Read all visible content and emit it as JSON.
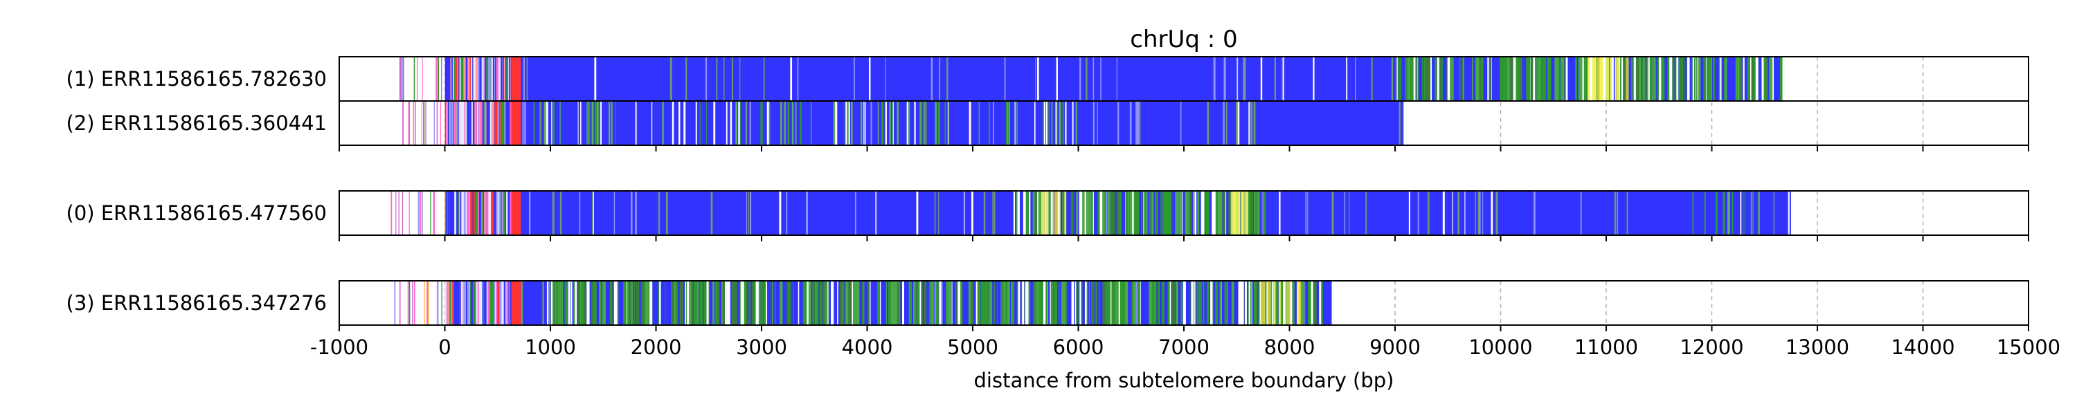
{
  "chart_data": {
    "type": "bar",
    "title": "chrUq : 0",
    "xlabel": "distance from subtelomere boundary (bp)",
    "xlim": [
      -1000,
      15000
    ],
    "xticks": [
      -1000,
      0,
      1000,
      2000,
      3000,
      4000,
      5000,
      6000,
      7000,
      8000,
      9000,
      10000,
      11000,
      12000,
      13000,
      14000,
      15000
    ],
    "xtick_labels": [
      "-1000",
      "0",
      "1000",
      "2000",
      "3000",
      "4000",
      "5000",
      "6000",
      "7000",
      "8000",
      "9000",
      "10000",
      "11000",
      "12000",
      "13000",
      "14000",
      "15000"
    ],
    "grid": "vertical dashed lines at each x tick",
    "colors": {
      "blue": "#3333ff",
      "green": "#2e9a2e",
      "yellow": "#f2f25a",
      "red": "#ff3333",
      "pink": "#ff66cc",
      "white": "#ffffff"
    },
    "groups": [
      {
        "reads": [
          {
            "label": "(1) ERR11586165.782630",
            "end": 12650,
            "segments": [
              {
                "start": 700,
                "end": 9000,
                "color": "blue"
              },
              {
                "start": 9000,
                "end": 12650,
                "color": "green_mix"
              },
              {
                "start": 630,
                "end": 720,
                "color": "red"
              },
              {
                "start": 0,
                "end": 700,
                "color": "subtelomere_mix"
              },
              {
                "start": -500,
                "end": 0,
                "color": "sparse_mix"
              },
              {
                "start": 10800,
                "end": 11200,
                "color": "yellow"
              }
            ]
          },
          {
            "label": "(2) ERR11586165.360441",
            "end": 9080,
            "segments": [
              {
                "start": 700,
                "end": 9080,
                "color": "blue"
              },
              {
                "start": 700,
                "end": 6000,
                "color": "green_sparse"
              },
              {
                "start": 630,
                "end": 720,
                "color": "red"
              },
              {
                "start": 0,
                "end": 700,
                "color": "subtelomere_mix"
              },
              {
                "start": -450,
                "end": 0,
                "color": "sparse_mix"
              }
            ]
          }
        ]
      },
      {
        "reads": [
          {
            "label": "(0) ERR11586165.477560",
            "end": 12750,
            "segments": [
              {
                "start": 700,
                "end": 12750,
                "color": "blue"
              },
              {
                "start": 5400,
                "end": 7800,
                "color": "green_mix"
              },
              {
                "start": 11800,
                "end": 12600,
                "color": "green_sparse"
              },
              {
                "start": 630,
                "end": 720,
                "color": "red"
              },
              {
                "start": 0,
                "end": 700,
                "color": "subtelomere_mix"
              },
              {
                "start": -520,
                "end": 0,
                "color": "sparse_mix"
              },
              {
                "start": 5600,
                "end": 5900,
                "color": "yellow"
              },
              {
                "start": 7400,
                "end": 7700,
                "color": "yellow"
              }
            ]
          }
        ]
      },
      {
        "reads": [
          {
            "label": "(3) ERR11586165.347276",
            "end": 8400,
            "segments": [
              {
                "start": 700,
                "end": 8400,
                "color": "blue"
              },
              {
                "start": 1000,
                "end": 7600,
                "color": "green_mix"
              },
              {
                "start": 7600,
                "end": 8300,
                "color": "green_mix"
              },
              {
                "start": 630,
                "end": 720,
                "color": "red"
              },
              {
                "start": 0,
                "end": 700,
                "color": "subtelomere_mix"
              },
              {
                "start": -480,
                "end": 0,
                "color": "sparse_mix"
              },
              {
                "start": 7700,
                "end": 8100,
                "color": "yellow"
              }
            ]
          }
        ]
      }
    ]
  }
}
